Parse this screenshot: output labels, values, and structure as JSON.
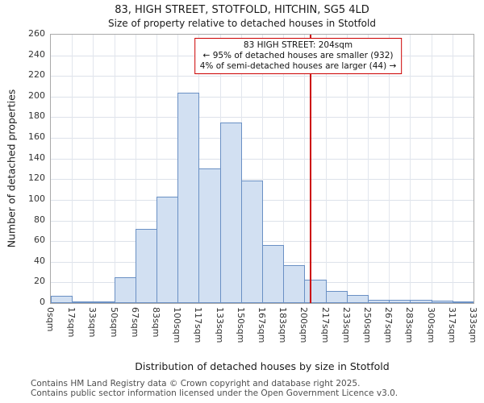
{
  "title": "83, HIGH STREET, STOTFOLD, HITCHIN, SG5 4LD",
  "subtitle": "Size of property relative to detached houses in Stotfold",
  "annotation": {
    "line1": "83 HIGH STREET: 204sqm",
    "line2": "← 95% of detached houses are smaller (932)",
    "line3": "4% of semi-detached houses are larger (44) →"
  },
  "footer": {
    "line1": "Contains HM Land Registry data © Crown copyright and database right 2025.",
    "line2": "Contains public sector information licensed under the Open Government Licence v3.0."
  },
  "chart_data": {
    "type": "bar",
    "title": "83, HIGH STREET, STOTFOLD, HITCHIN, SG5 4LD",
    "subtitle": "Size of property relative to detached houses in Stotfold",
    "xlabel": "Distribution of detached houses by size in Stotfold",
    "ylabel": "Number of detached properties",
    "x_tick_labels": [
      "0sqm",
      "17sqm",
      "33sqm",
      "50sqm",
      "67sqm",
      "83sqm",
      "100sqm",
      "117sqm",
      "133sqm",
      "150sqm",
      "167sqm",
      "183sqm",
      "200sqm",
      "217sqm",
      "233sqm",
      "250sqm",
      "267sqm",
      "283sqm",
      "300sqm",
      "317sqm",
      "333sqm"
    ],
    "values": [
      7,
      1,
      1,
      25,
      72,
      103,
      204,
      130,
      175,
      119,
      56,
      37,
      23,
      12,
      8,
      3,
      3,
      3,
      2,
      1
    ],
    "y_ticks": [
      0,
      20,
      40,
      60,
      80,
      100,
      120,
      140,
      160,
      180,
      200,
      220,
      240,
      260
    ],
    "y_max": 260,
    "x_max_sqm": 333.33,
    "marker": {
      "value_sqm": 204
    },
    "legend": "none",
    "grid": true,
    "colors": {
      "bar_fill": "#d2e0f2",
      "bar_border": "#6a90c4",
      "marker": "#cc0000",
      "annotation_border": "#cc0000"
    }
  }
}
